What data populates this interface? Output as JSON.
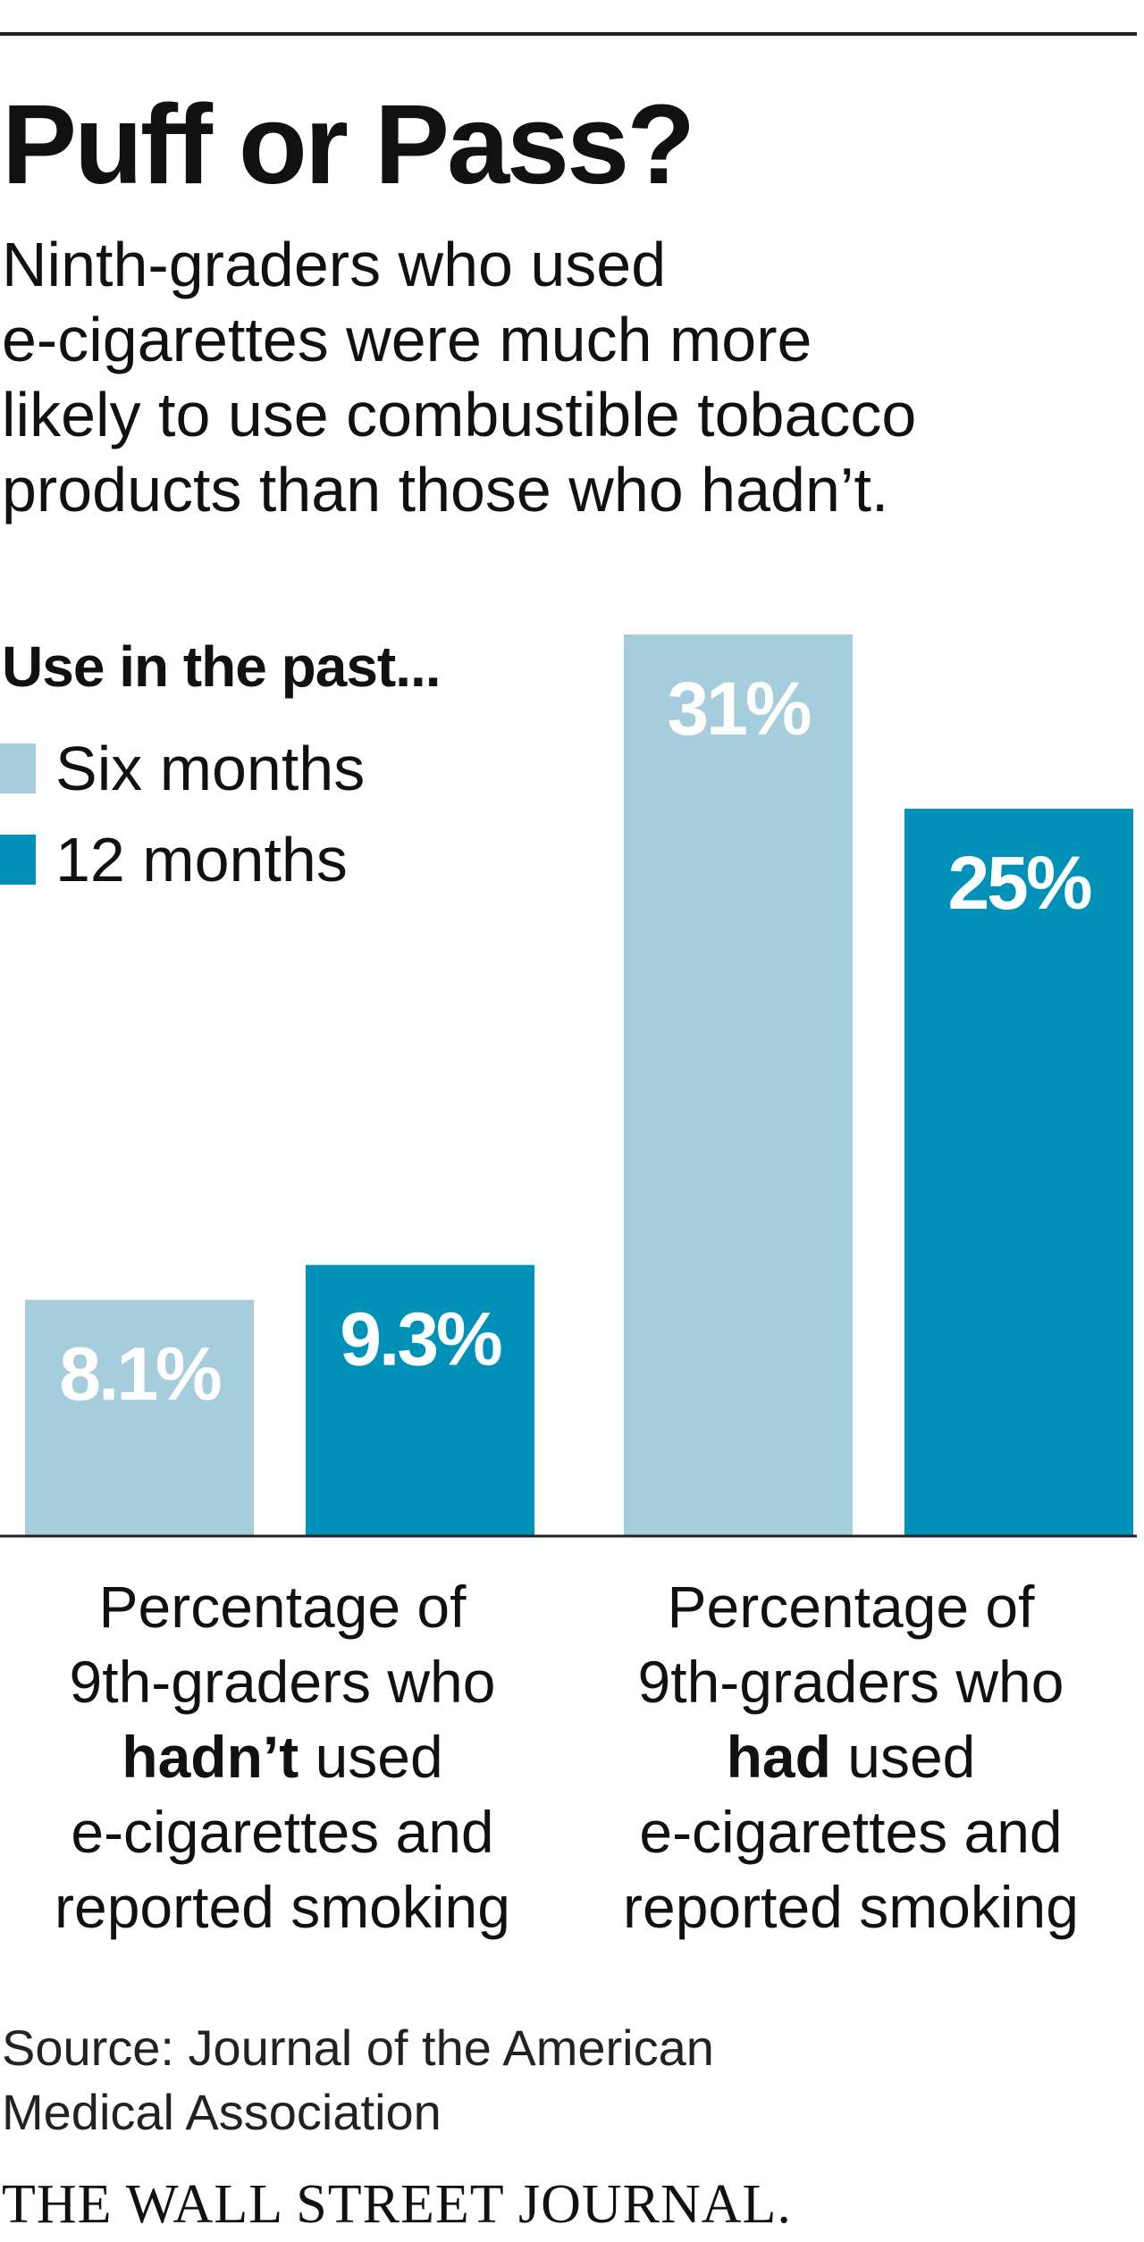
{
  "chart_data": {
    "type": "bar",
    "title": "Puff or Pass?",
    "subtitle_lines": [
      "Ninth-graders who used",
      "e-cigarettes were much more",
      "likely to use combustible tobacco",
      "products than those who hadn’t."
    ],
    "legend_title": "Use in the past...",
    "categories": [
      {
        "line1": "Percentage of",
        "line2": "9th-graders who",
        "bold": "hadn’t",
        "line3_rest": " used",
        "line4": "e-cigarettes and",
        "line5": "reported smoking"
      },
      {
        "line1": "Percentage of",
        "line2": "9th-graders who",
        "bold": "had",
        "line3_rest": " used",
        "line4": "e-cigarettes and",
        "line5": "reported smoking"
      }
    ],
    "series": [
      {
        "name": "Six months",
        "color": "#a6cddc",
        "values": [
          8.1,
          31
        ],
        "labels": [
          "8.1%",
          "31%"
        ]
      },
      {
        "name": "12 months",
        "color": "#0091b9",
        "values": [
          9.3,
          25
        ],
        "labels": [
          "9.3%",
          "25%"
        ]
      }
    ],
    "ylim": [
      0,
      31
    ],
    "grid": false,
    "legend_position": "top-left",
    "source_lines": [
      "Source: Journal of the American",
      "Medical Association"
    ],
    "brand": "THE WALL STREET JOURNAL."
  }
}
